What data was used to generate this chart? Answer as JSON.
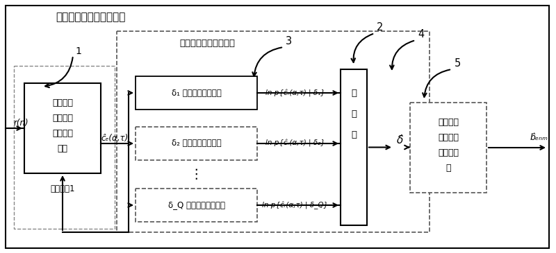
{
  "title": "谱域通信信号的解调系统",
  "inner_box_label": "循环延时检测处理单元",
  "block1_lines": [
    "循环自相",
    "关函数估",
    "计值处理",
    "单元"
  ],
  "block1_sublabel": "输入参数1",
  "block5_lines": [
    "循环调制",
    "矢量解映",
    "射处理单",
    "元"
  ],
  "max_label": [
    "最",
    "大",
    "值"
  ],
  "bg_color": "#ffffff",
  "outer_lw": 1.5,
  "inner_lw": 1.2
}
